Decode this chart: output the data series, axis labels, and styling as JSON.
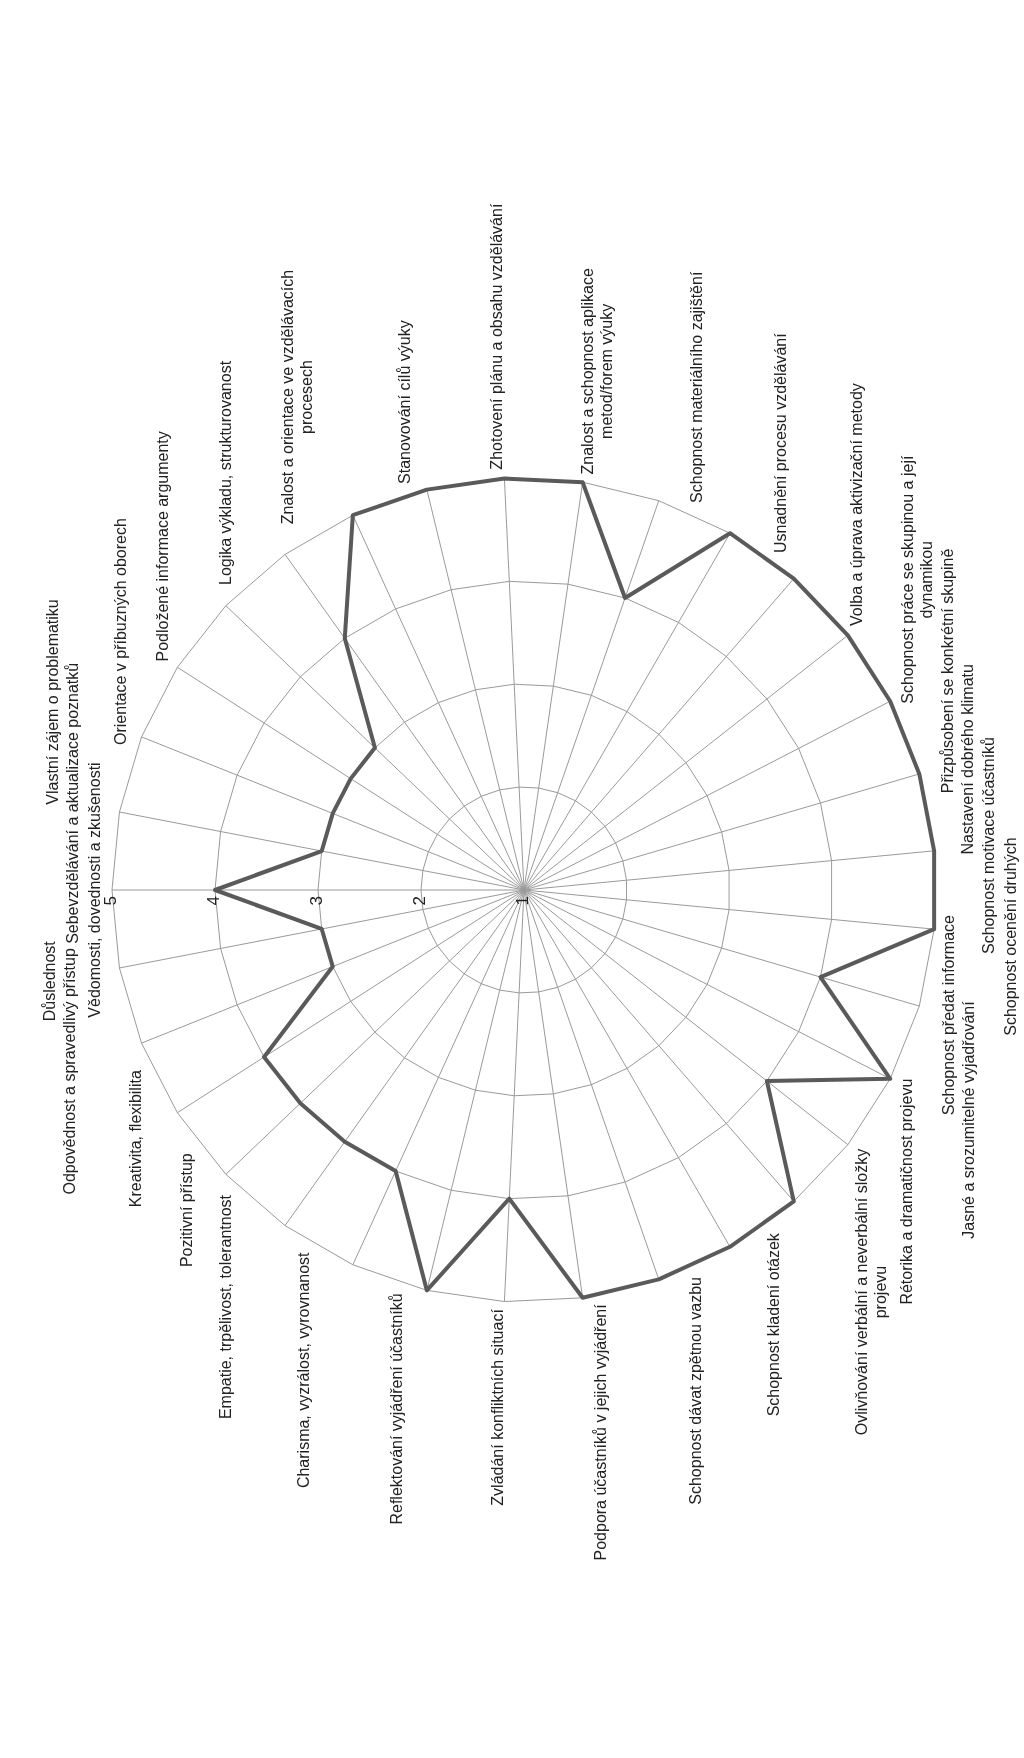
{
  "chart_data": {
    "type": "radar",
    "categories": [
      "Vědomosti, dovednosti a zkušenosti",
      "Sebevzdělávání a aktualizace poznatků",
      "Vlastní zájem o problematiku",
      "Orientace v příbuzných oborech",
      "Podložené informace argumenty",
      "Logika výkladu, strukturovanost",
      "Znalost a orientace ve vzdělávacích\nprocesech",
      "Stanovování cílů výuky",
      "Zhotovení plánu a obsahu vzdělávání",
      "Znalost a schopnost aplikace\nmetod/forem výuky",
      "Schopnost materiálního zajištění",
      "Usnadnění procesu vzdělávání",
      "Volba a úprava aktivizační metody",
      "Schopnost práce se skupinou a její\ndynamikou",
      "Přizpůsobení se konkrétní skupině",
      "Nastavení dobrého klimatu",
      "Schopnost motivace účastníků",
      "Schopnost ocenění druhých",
      "Schopnost předat informace",
      "Jasné a srozumitelné vyjadřování",
      "Rétorika a dramatičnost projevu",
      "Ovlivňování verbální a neverbální složky\nprojevu",
      "Schopnost kladení otázek",
      "Schopnost dávat zpětnou vazbu",
      "Podpora účastníků v jejich vyjádření",
      "Zvládání konfliktních situací",
      "Reflektování vyjádření účastníků",
      "Charisma, vyzrálost, vyrovnanost",
      "Empatie, trpělivost, tolerantnost",
      "Pozitivní přístup",
      "Kreativita, flexibilita",
      "Odpovědnost a spravedlivý přístup",
      "Důslednost"
    ],
    "series": [
      {
        "color": "#5a5a5a",
        "values": [
          4,
          3,
          3,
          3,
          3,
          4,
          5,
          5,
          5,
          5,
          4,
          5,
          5,
          5,
          5,
          5,
          5,
          5,
          4,
          5,
          4,
          5,
          5,
          5,
          5,
          4,
          5,
          4,
          4,
          4,
          4,
          3,
          3
        ]
      }
    ],
    "ylim": [
      1,
      5
    ],
    "yticks": [
      1,
      2,
      3,
      4,
      5
    ],
    "grid": true
  }
}
